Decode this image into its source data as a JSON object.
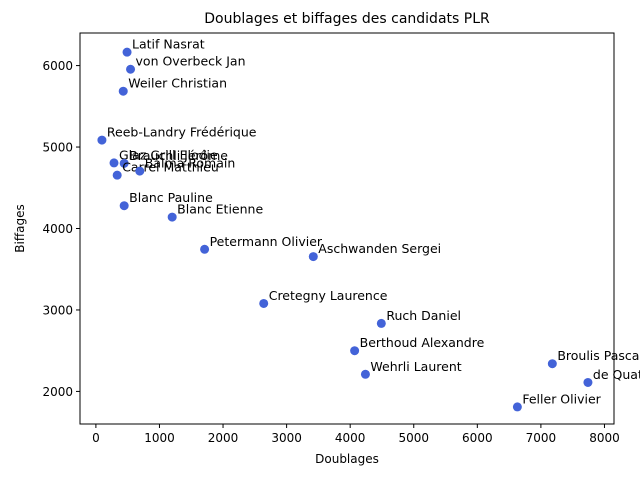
{
  "chart_data": {
    "type": "scatter",
    "title": "Doublages et biffages des candidats PLR",
    "xlabel": "Doublages",
    "ylabel": "Biffages",
    "xlim": [
      -250,
      8150
    ],
    "ylim": [
      1600,
      6400
    ],
    "xticks": [
      0,
      1000,
      2000,
      3000,
      4000,
      5000,
      6000,
      7000,
      8000
    ],
    "yticks": [
      2000,
      3000,
      4000,
      5000,
      6000
    ],
    "grid": false,
    "marker_color": "#4363d8",
    "points": [
      {
        "label": "Latif Nasrat",
        "x": 490,
        "y": 6165
      },
      {
        "label": "von Overbeck Jan",
        "x": 545,
        "y": 5955
      },
      {
        "label": "Weiler Christian",
        "x": 430,
        "y": 5685
      },
      {
        "label": "Reeb-Landry Frédérique",
        "x": 95,
        "y": 5085
      },
      {
        "label": "Glaz Grill Elodie",
        "x": 285,
        "y": 4805
      },
      {
        "label": "Brauchli Jérôme",
        "x": 445,
        "y": 4800
      },
      {
        "label": "Carrel Matthieu",
        "x": 335,
        "y": 4655
      },
      {
        "label": "Balma Romain",
        "x": 690,
        "y": 4705
      },
      {
        "label": "Blanc Pauline",
        "x": 445,
        "y": 4280
      },
      {
        "label": "Blanc Etienne",
        "x": 1200,
        "y": 4140
      },
      {
        "label": "Petermann Olivier",
        "x": 1710,
        "y": 3745
      },
      {
        "label": "Aschwanden Sergei",
        "x": 3420,
        "y": 3655
      },
      {
        "label": "Cretegny Laurence",
        "x": 2640,
        "y": 3080
      },
      {
        "label": "Ruch Daniel",
        "x": 4490,
        "y": 2835
      },
      {
        "label": "Berthoud Alexandre",
        "x": 4070,
        "y": 2500
      },
      {
        "label": "Wehrli Laurent",
        "x": 4240,
        "y": 2210
      },
      {
        "label": "Broulis Pascal",
        "x": 7180,
        "y": 2340
      },
      {
        "label": "de Quattro Jacqueline",
        "x": 7740,
        "y": 2110
      },
      {
        "label": "Feller Olivier",
        "x": 6630,
        "y": 1810
      }
    ]
  }
}
